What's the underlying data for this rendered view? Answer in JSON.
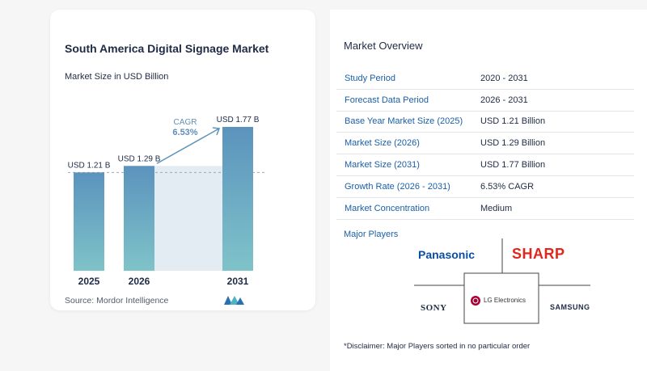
{
  "chart_card": {
    "title": "South America Digital Signage Market",
    "subtitle": "Market Size in USD Billion",
    "source": "Source:  Mordor Intelligence"
  },
  "chart_data": {
    "type": "bar",
    "categories": [
      "2025",
      "2026",
      "2031"
    ],
    "values": [
      1.21,
      1.29,
      1.77
    ],
    "data_labels": [
      "USD 1.21 B",
      "USD 1.29 B",
      "USD 1.77 B"
    ],
    "cagr_label": "CAGR",
    "cagr_value": "6.53%",
    "title": "South America Digital Signage Market",
    "subtitle": "Market Size in USD Billion",
    "ylim": [
      0,
      1.77
    ],
    "bar_color_top": "#5b93bd",
    "bar_color_bottom": "#7fc3c9",
    "grid": false
  },
  "overview": {
    "title": "Market Overview",
    "rows": [
      {
        "label": "Study Period",
        "value": "2020 - 2031"
      },
      {
        "label": "Forecast Data Period",
        "value": "2026 - 2031"
      },
      {
        "label": "Base Year Market Size (2025)",
        "value": "USD 1.21 Billion"
      },
      {
        "label": "Market Size (2026)",
        "value": "USD 1.29 Billion"
      },
      {
        "label": "Market Size (2031)",
        "value": "USD 1.77 Billion"
      },
      {
        "label": "Growth Rate (2026 - 2031)",
        "value": "6.53% CAGR"
      },
      {
        "label": "Market Concentration",
        "value": "Medium"
      }
    ]
  },
  "players": {
    "title": "Major Players",
    "logos": [
      "Panasonic",
      "SHARP",
      "SONY",
      "LG Electronics",
      "SAMSUNG"
    ]
  },
  "disclaimer": "*Disclaimer: Major Players sorted in no particular order",
  "colors": {
    "label_blue": "#1a5fa8",
    "panasonic_blue": "#0a4ea3",
    "sharp_red": "#e1261c",
    "lg_red": "#a50034"
  }
}
